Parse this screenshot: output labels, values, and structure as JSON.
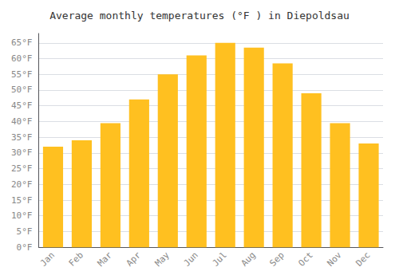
{
  "chart_data": {
    "type": "bar",
    "title": "Average monthly temperatures (°F ) in Diepoldsau",
    "categories": [
      "Jan",
      "Feb",
      "Mar",
      "Apr",
      "May",
      "Jun",
      "Jul",
      "Aug",
      "Sep",
      "Oct",
      "Nov",
      "Dec"
    ],
    "values": [
      32,
      34,
      39.5,
      47,
      55,
      61,
      65,
      63.5,
      58.5,
      49,
      39.5,
      33
    ],
    "color": "#FFC020",
    "ylim": [
      0,
      68
    ],
    "yticks": [
      {
        "value": 0,
        "label": "0°F"
      },
      {
        "value": 5,
        "label": "5°F"
      },
      {
        "value": 10,
        "label": "10°F"
      },
      {
        "value": 15,
        "label": "15°F"
      },
      {
        "value": 20,
        "label": "20°F"
      },
      {
        "value": 25,
        "label": "25°F"
      },
      {
        "value": 30,
        "label": "30°F"
      },
      {
        "value": 35,
        "label": "35°F"
      },
      {
        "value": 40,
        "label": "40°F"
      },
      {
        "value": 45,
        "label": "45°F"
      },
      {
        "value": 50,
        "label": "50°F"
      },
      {
        "value": 55,
        "label": "55°F"
      },
      {
        "value": 60,
        "label": "60°F"
      },
      {
        "value": 65,
        "label": "65°F"
      }
    ],
    "grid": true
  }
}
